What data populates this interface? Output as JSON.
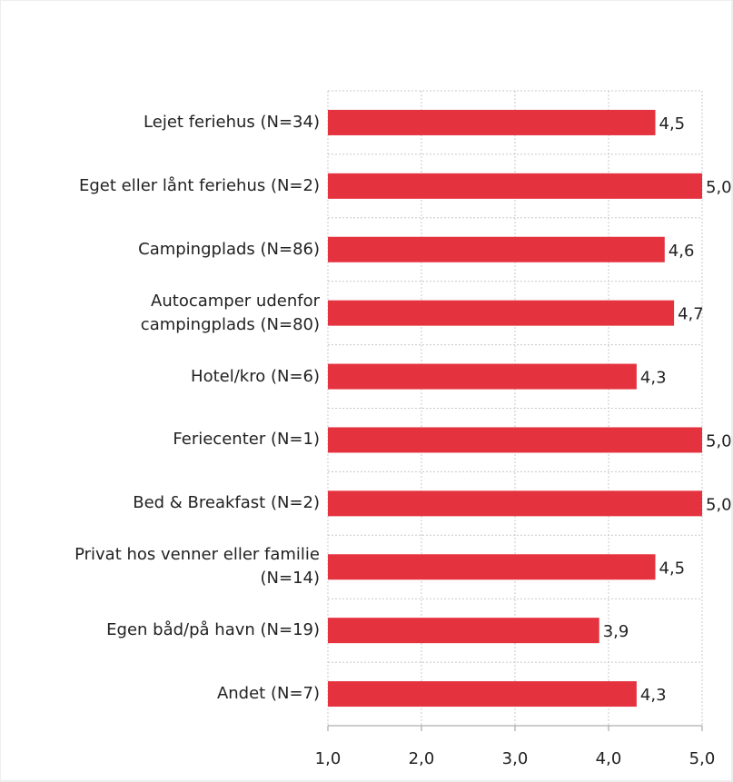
{
  "chart_data": {
    "type": "bar",
    "orientation": "horizontal",
    "categories": [
      "Lejet feriehus (N=34)",
      "Eget eller lånt feriehus (N=2)",
      "Campingplads (N=86)",
      "Autocamper udenfor\ncampingplads (N=80)",
      "Hotel/kro (N=6)",
      "Feriecenter (N=1)",
      "Bed & Breakfast (N=2)",
      "Privat hos venner eller familie\n(N=14)",
      "Egen båd/på havn (N=19)",
      "Andet (N=7)"
    ],
    "values": [
      4.5,
      5.0,
      4.6,
      4.7,
      4.3,
      5.0,
      5.0,
      4.5,
      3.9,
      4.3
    ],
    "value_labels": [
      "4,5",
      "5,0",
      "4,6",
      "4,7",
      "4,3",
      "5,0",
      "5,0",
      "4,5",
      "3,9",
      "4,3"
    ],
    "color": "#e5323f",
    "xlim": [
      1,
      5
    ],
    "xticks": [
      {
        "value": 1,
        "label": "1,0"
      },
      {
        "value": 2,
        "label": "2,0"
      },
      {
        "value": 3,
        "label": "3,0"
      },
      {
        "value": 4,
        "label": "4,0"
      },
      {
        "value": 5,
        "label": "5,0"
      }
    ],
    "grid": true
  }
}
